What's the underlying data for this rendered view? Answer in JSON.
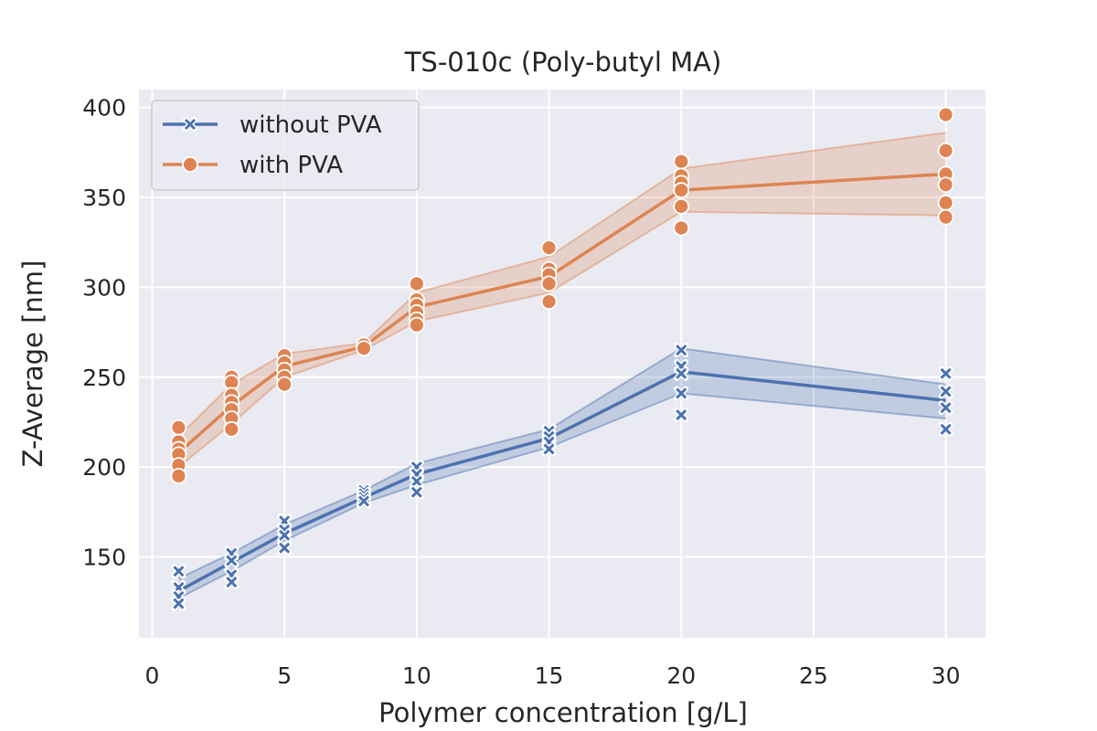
{
  "chart_data": {
    "type": "line",
    "title": "TS-010c (Poly-butyl MA)",
    "xlabel": "Polymer concentration [g/L]",
    "ylabel": "Z-Average [nm]",
    "xlim": [
      -0.5,
      31.5
    ],
    "ylim": [
      105,
      410
    ],
    "xticks": [
      0,
      5,
      10,
      15,
      20,
      25,
      30
    ],
    "yticks": [
      150,
      200,
      250,
      300,
      350,
      400
    ],
    "grid": true,
    "legend_position": "top-left",
    "series": [
      {
        "name": "without PVA",
        "color": "#4c72b0",
        "marker": "x",
        "x": [
          1,
          3,
          5,
          8,
          10,
          15,
          20,
          30
        ],
        "mean": [
          131,
          147,
          163,
          183,
          196,
          216,
          253,
          237
        ],
        "ci_low": [
          127,
          142,
          159,
          180,
          190,
          211,
          241,
          227
        ],
        "ci_high": [
          138,
          152,
          168,
          187,
          202,
          221,
          266,
          246
        ],
        "points": [
          [
            1,
            142
          ],
          [
            1,
            133
          ],
          [
            1,
            128
          ],
          [
            1,
            124
          ],
          [
            3,
            152
          ],
          [
            3,
            148
          ],
          [
            3,
            140
          ],
          [
            3,
            136
          ],
          [
            5,
            170
          ],
          [
            5,
            165
          ],
          [
            5,
            162
          ],
          [
            5,
            155
          ],
          [
            8,
            187
          ],
          [
            8,
            185
          ],
          [
            8,
            183
          ],
          [
            8,
            181
          ],
          [
            10,
            200
          ],
          [
            10,
            196
          ],
          [
            10,
            192
          ],
          [
            10,
            186
          ],
          [
            15,
            220
          ],
          [
            15,
            217
          ],
          [
            15,
            214
          ],
          [
            15,
            210
          ],
          [
            20,
            265
          ],
          [
            20,
            256
          ],
          [
            20,
            252
          ],
          [
            20,
            241
          ],
          [
            20,
            229
          ],
          [
            30,
            252
          ],
          [
            30,
            242
          ],
          [
            30,
            233
          ],
          [
            30,
            221
          ]
        ]
      },
      {
        "name": "with PVA",
        "color": "#dd8452",
        "marker": "o",
        "x": [
          1,
          3,
          5,
          8,
          10,
          15,
          20,
          30
        ],
        "mean": [
          208,
          234,
          256,
          267,
          289,
          306,
          354,
          363
        ],
        "ci_low": [
          200,
          224,
          250,
          265,
          281,
          297,
          342,
          340
        ],
        "ci_high": [
          217,
          246,
          263,
          269,
          297,
          317,
          366,
          386
        ],
        "points": [
          [
            1,
            222
          ],
          [
            1,
            214
          ],
          [
            1,
            210
          ],
          [
            1,
            207
          ],
          [
            1,
            201
          ],
          [
            1,
            195
          ],
          [
            3,
            250
          ],
          [
            3,
            247
          ],
          [
            3,
            240
          ],
          [
            3,
            236
          ],
          [
            3,
            232
          ],
          [
            3,
            227
          ],
          [
            3,
            221
          ],
          [
            5,
            262
          ],
          [
            5,
            258
          ],
          [
            5,
            254
          ],
          [
            5,
            250
          ],
          [
            5,
            246
          ],
          [
            8,
            268
          ],
          [
            8,
            266
          ],
          [
            10,
            302
          ],
          [
            10,
            293
          ],
          [
            10,
            290
          ],
          [
            10,
            286
          ],
          [
            10,
            282
          ],
          [
            10,
            279
          ],
          [
            15,
            322
          ],
          [
            15,
            310
          ],
          [
            15,
            307
          ],
          [
            15,
            302
          ],
          [
            15,
            292
          ],
          [
            20,
            370
          ],
          [
            20,
            362
          ],
          [
            20,
            358
          ],
          [
            20,
            354
          ],
          [
            20,
            345
          ],
          [
            20,
            333
          ],
          [
            30,
            396
          ],
          [
            30,
            376
          ],
          [
            30,
            363
          ],
          [
            30,
            357
          ],
          [
            30,
            347
          ],
          [
            30,
            339
          ]
        ]
      }
    ]
  }
}
